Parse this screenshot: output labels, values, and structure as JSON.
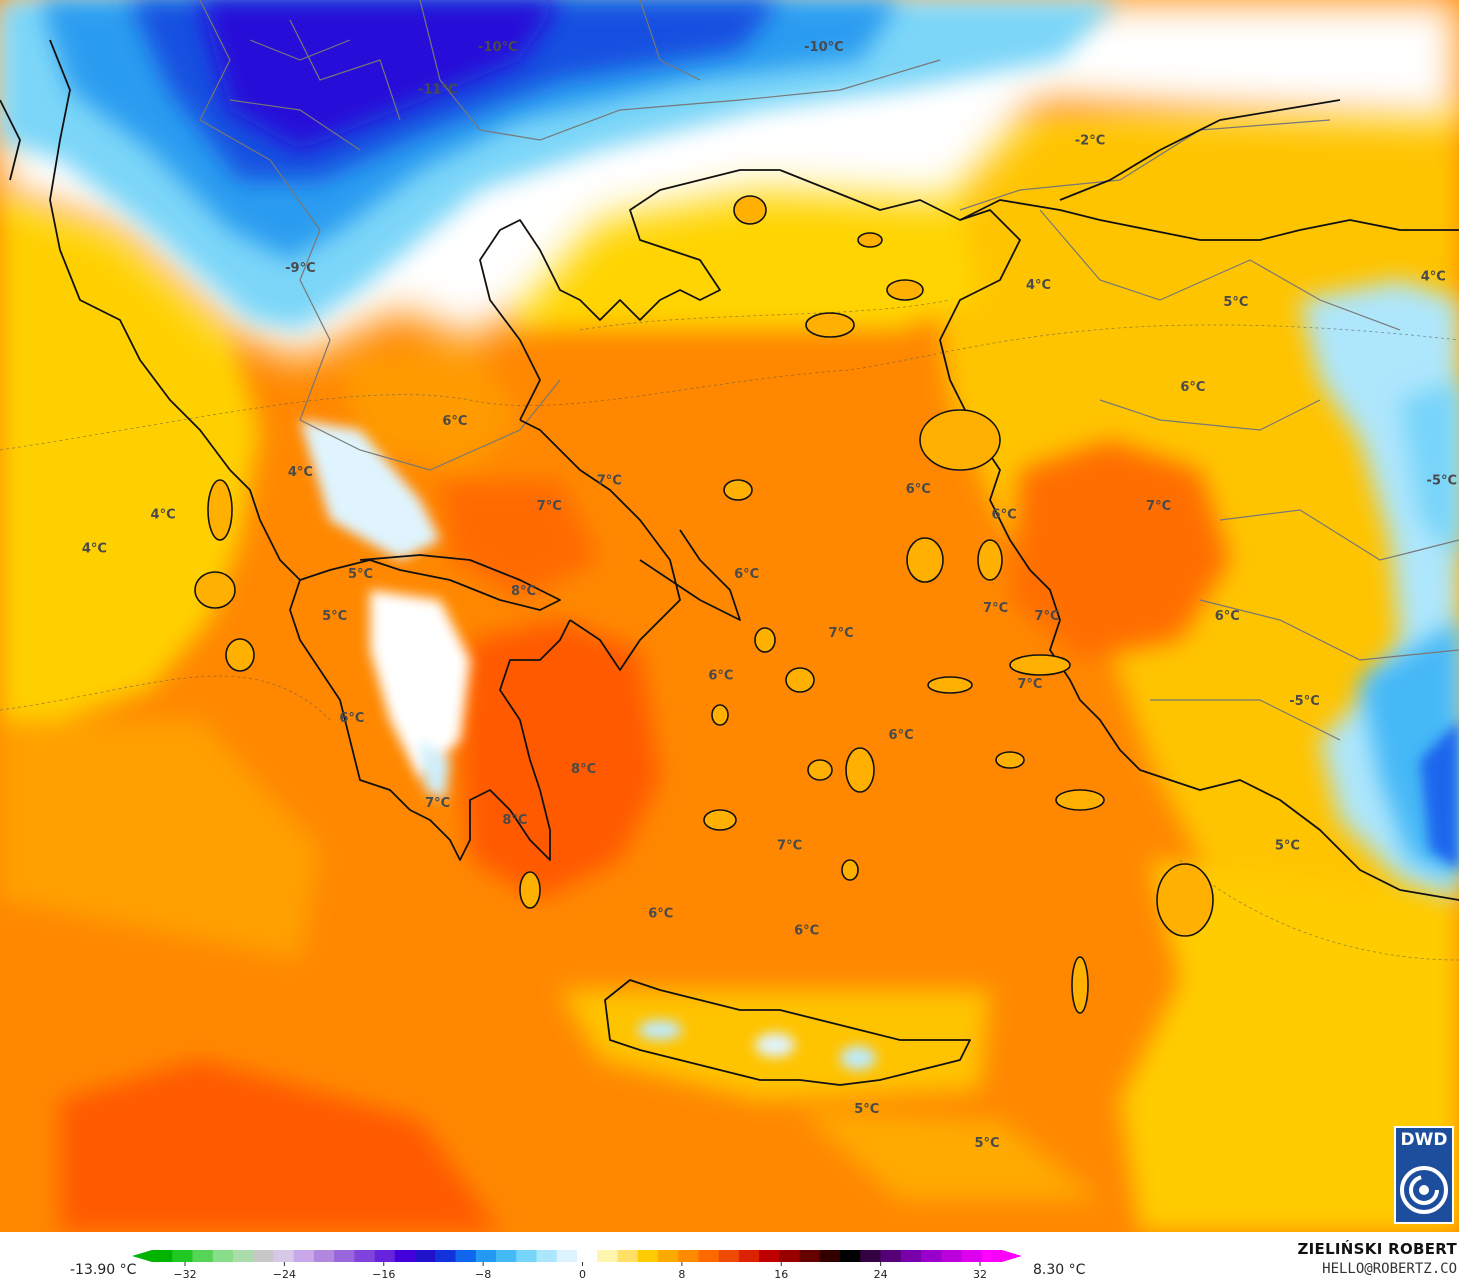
{
  "map": {
    "temperature_labels": [
      {
        "text": "-10°C",
        "lon": 22.3,
        "lat": 43.9
      },
      {
        "text": "-10°C",
        "lon": 26.1,
        "lat": 43.9
      },
      {
        "text": "-11°C",
        "lon": 21.6,
        "lat": 43.4
      },
      {
        "text": "-2°C",
        "lon": 29.2,
        "lat": 42.8
      },
      {
        "text": "-9°C",
        "lon": 20.0,
        "lat": 41.3
      },
      {
        "text": "4°C",
        "lon": 28.6,
        "lat": 41.1
      },
      {
        "text": "5°C",
        "lon": 30.9,
        "lat": 40.9
      },
      {
        "text": "4°C",
        "lon": 33.2,
        "lat": 41.2
      },
      {
        "text": "6°C",
        "lon": 30.4,
        "lat": 39.9
      },
      {
        "text": "6°C",
        "lon": 21.8,
        "lat": 39.5
      },
      {
        "text": "4°C",
        "lon": 20.0,
        "lat": 38.9
      },
      {
        "text": "7°C",
        "lon": 23.6,
        "lat": 38.8
      },
      {
        "text": "6°C",
        "lon": 27.2,
        "lat": 38.7
      },
      {
        "text": "-5°C",
        "lon": 33.3,
        "lat": 38.8
      },
      {
        "text": "4°C",
        "lon": 18.4,
        "lat": 38.4
      },
      {
        "text": "7°C",
        "lon": 22.9,
        "lat": 38.5
      },
      {
        "text": "6°C",
        "lon": 28.2,
        "lat": 38.4
      },
      {
        "text": "7°C",
        "lon": 30.0,
        "lat": 38.5
      },
      {
        "text": "4°C",
        "lon": 17.6,
        "lat": 38.0
      },
      {
        "text": "5°C",
        "lon": 20.7,
        "lat": 37.7
      },
      {
        "text": "6°C",
        "lon": 25.2,
        "lat": 37.7
      },
      {
        "text": "8°C",
        "lon": 22.6,
        "lat": 37.5
      },
      {
        "text": "5°C",
        "lon": 20.4,
        "lat": 37.2
      },
      {
        "text": "7°C",
        "lon": 28.1,
        "lat": 37.3
      },
      {
        "text": "7°C",
        "lon": 28.7,
        "lat": 37.2
      },
      {
        "text": "6°C",
        "lon": 30.8,
        "lat": 37.2
      },
      {
        "text": "7°C",
        "lon": 26.3,
        "lat": 37.0
      },
      {
        "text": "6°C",
        "lon": 24.9,
        "lat": 36.5
      },
      {
        "text": "7°C",
        "lon": 28.5,
        "lat": 36.4
      },
      {
        "text": "-5°C",
        "lon": 31.7,
        "lat": 36.2
      },
      {
        "text": "6°C",
        "lon": 20.6,
        "lat": 36.0
      },
      {
        "text": "6°C",
        "lon": 27.0,
        "lat": 35.8
      },
      {
        "text": "8°C",
        "lon": 23.3,
        "lat": 35.4
      },
      {
        "text": "7°C",
        "lon": 21.6,
        "lat": 35.0
      },
      {
        "text": "8°C",
        "lon": 22.5,
        "lat": 34.8
      },
      {
        "text": "7°C",
        "lon": 25.7,
        "lat": 34.5
      },
      {
        "text": "5°C",
        "lon": 31.5,
        "lat": 34.5
      },
      {
        "text": "6°C",
        "lon": 24.2,
        "lat": 33.7
      },
      {
        "text": "6°C",
        "lon": 25.9,
        "lat": 33.5
      },
      {
        "text": "5°C",
        "lon": 26.6,
        "lat": 31.4
      },
      {
        "text": "5°C",
        "lon": 28.0,
        "lat": 31.0
      }
    ]
  },
  "legend": {
    "min_label": "-13.90 °C",
    "max_label": "8.30 °C",
    "ticks": [
      "−32",
      "−24",
      "−16",
      "−8",
      "0",
      "8",
      "16",
      "24",
      "32"
    ],
    "colors": [
      "#00b400",
      "#22c822",
      "#55d455",
      "#88dd88",
      "#aaddaa",
      "#c8c8c8",
      "#d8c8e8",
      "#c8a8e8",
      "#b088e0",
      "#9966dd",
      "#8044dd",
      "#6622dd",
      "#4400dd",
      "#2211cc",
      "#1133dd",
      "#1166ee",
      "#2299f2",
      "#44bbf6",
      "#77d4fa",
      "#aae6fc",
      "#ddf4fe",
      "#ffffff",
      "#fff3b0",
      "#ffe066",
      "#ffcc00",
      "#ffaa00",
      "#ff8c00",
      "#ff6a00",
      "#f04a00",
      "#dd2200",
      "#c00000",
      "#990000",
      "#660000",
      "#330000",
      "#000000",
      "#330044",
      "#550077",
      "#7700aa",
      "#9900cc",
      "#bb00dd",
      "#dd00ee",
      "#ff00ff"
    ]
  },
  "credit": {
    "name": "ZIELIŃSKI ROBERT",
    "email": "HELLO@ROBERTZ.CO"
  },
  "logo": {
    "text": "DWD"
  }
}
